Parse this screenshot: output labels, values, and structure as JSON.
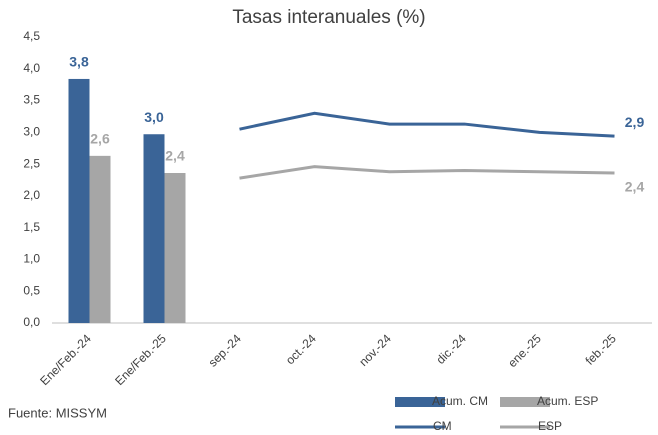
{
  "chart_data": {
    "type": "combo",
    "title": "Tasas interanuales (%)",
    "categories": [
      "Ene/Feb.-24",
      "Ene/Feb.-25",
      "sep.-24",
      "oct.-24",
      "nov.-24",
      "dic.-24",
      "ene.-25",
      "feb.-25"
    ],
    "series": [
      {
        "name": "Acum. CM",
        "kind": "bar",
        "color": "#3a6497",
        "values": [
          3.84,
          2.97,
          null,
          null,
          null,
          null,
          null,
          null
        ],
        "value_labels": [
          "3,8",
          "3,0",
          null,
          null,
          null,
          null,
          null,
          null
        ]
      },
      {
        "name": "Acum. ESP",
        "kind": "bar",
        "color": "#a6a6a6",
        "values": [
          2.63,
          2.36,
          null,
          null,
          null,
          null,
          null,
          null
        ],
        "value_labels": [
          "2,6",
          "2,4",
          null,
          null,
          null,
          null,
          null,
          null
        ]
      },
      {
        "name": "CM",
        "kind": "line",
        "color": "#3a6497",
        "values": [
          null,
          null,
          3.05,
          3.3,
          3.13,
          3.13,
          3.0,
          2.94
        ],
        "value_labels": [
          null,
          null,
          null,
          null,
          null,
          null,
          null,
          "2,9"
        ]
      },
      {
        "name": "ESP",
        "kind": "line",
        "color": "#a6a6a6",
        "values": [
          null,
          null,
          2.28,
          2.46,
          2.38,
          2.4,
          2.38,
          2.36
        ],
        "value_labels": [
          null,
          null,
          null,
          null,
          null,
          null,
          null,
          "2,4"
        ]
      }
    ],
    "ylim": [
      0,
      4.5
    ],
    "yticks": [
      {
        "value": 0,
        "label": "0,0"
      },
      {
        "value": 0.5,
        "label": "0,5"
      },
      {
        "value": 1,
        "label": "1,0"
      },
      {
        "value": 1.5,
        "label": "1,5"
      },
      {
        "value": 2,
        "label": "2,0"
      },
      {
        "value": 2.5,
        "label": "2,5"
      },
      {
        "value": 3,
        "label": "3,0"
      },
      {
        "value": 3.5,
        "label": "3,5"
      },
      {
        "value": 4,
        "label": "4,0"
      },
      {
        "value": 4.5,
        "label": "4,5"
      }
    ],
    "grid": false,
    "legend": "bottom-right",
    "source": "Fuente: MISSYM"
  }
}
